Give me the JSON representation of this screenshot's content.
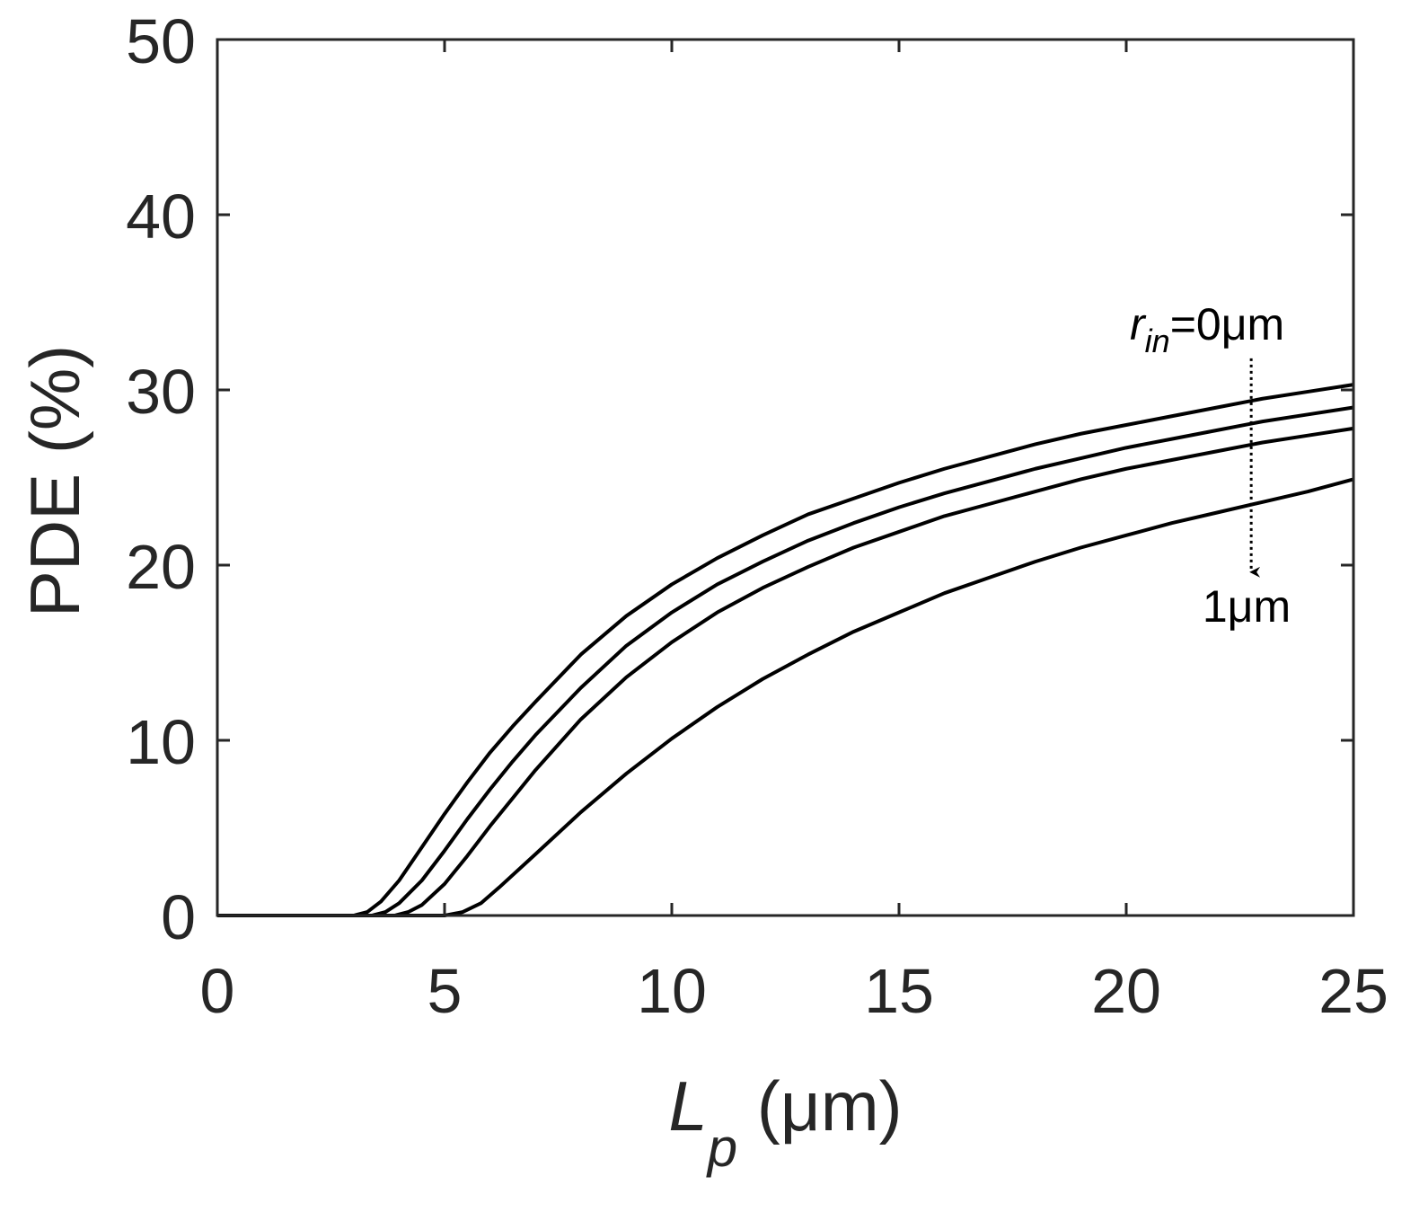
{
  "chart_data": {
    "type": "line",
    "xlabel": {
      "main": "L",
      "sub": "p",
      "unit": " (μm)"
    },
    "ylabel": "PDE (%)",
    "xlim": [
      0,
      25
    ],
    "ylim": [
      0,
      50
    ],
    "xticks": [
      0,
      5,
      10,
      15,
      20,
      25
    ],
    "yticks": [
      0,
      10,
      20,
      30,
      40,
      50
    ],
    "grid": false,
    "line_color": "#000000",
    "axis_color": "#262626",
    "series": [
      {
        "points": [
          [
            0,
            0
          ],
          [
            3.0,
            0
          ],
          [
            3.3,
            0.2
          ],
          [
            3.6,
            0.8
          ],
          [
            4.0,
            2.0
          ],
          [
            4.5,
            3.9
          ],
          [
            5.0,
            5.8
          ],
          [
            5.5,
            7.6
          ],
          [
            6.0,
            9.3
          ],
          [
            6.5,
            10.8
          ],
          [
            7.0,
            12.2
          ],
          [
            8.0,
            14.9
          ],
          [
            9.0,
            17.1
          ],
          [
            10.0,
            18.9
          ],
          [
            11.0,
            20.4
          ],
          [
            12.0,
            21.7
          ],
          [
            13.0,
            22.9
          ],
          [
            14.0,
            23.8
          ],
          [
            15.0,
            24.7
          ],
          [
            16.0,
            25.5
          ],
          [
            17.0,
            26.2
          ],
          [
            18.0,
            26.9
          ],
          [
            19.0,
            27.5
          ],
          [
            20.0,
            28.0
          ],
          [
            21.0,
            28.5
          ],
          [
            22.0,
            29.0
          ],
          [
            23.0,
            29.5
          ],
          [
            24.0,
            29.9
          ],
          [
            25.0,
            30.3
          ]
        ]
      },
      {
        "points": [
          [
            0,
            0
          ],
          [
            3.4,
            0
          ],
          [
            3.7,
            0.2
          ],
          [
            4.0,
            0.7
          ],
          [
            4.5,
            2.0
          ],
          [
            5.0,
            3.7
          ],
          [
            5.5,
            5.5
          ],
          [
            6.0,
            7.2
          ],
          [
            6.5,
            8.8
          ],
          [
            7.0,
            10.3
          ],
          [
            8.0,
            13.0
          ],
          [
            9.0,
            15.4
          ],
          [
            10.0,
            17.3
          ],
          [
            11.0,
            18.9
          ],
          [
            12.0,
            20.2
          ],
          [
            13.0,
            21.4
          ],
          [
            14.0,
            22.4
          ],
          [
            15.0,
            23.3
          ],
          [
            16.0,
            24.1
          ],
          [
            17.0,
            24.8
          ],
          [
            18.0,
            25.5
          ],
          [
            19.0,
            26.1
          ],
          [
            20.0,
            26.7
          ],
          [
            21.0,
            27.2
          ],
          [
            22.0,
            27.7
          ],
          [
            23.0,
            28.2
          ],
          [
            24.0,
            28.6
          ],
          [
            25.0,
            29.0
          ]
        ]
      },
      {
        "points": [
          [
            0,
            0
          ],
          [
            3.9,
            0
          ],
          [
            4.2,
            0.2
          ],
          [
            4.5,
            0.6
          ],
          [
            5.0,
            1.8
          ],
          [
            5.5,
            3.4
          ],
          [
            6.0,
            5.1
          ],
          [
            6.5,
            6.7
          ],
          [
            7.0,
            8.3
          ],
          [
            8.0,
            11.2
          ],
          [
            9.0,
            13.6
          ],
          [
            10.0,
            15.6
          ],
          [
            11.0,
            17.3
          ],
          [
            12.0,
            18.7
          ],
          [
            13.0,
            19.9
          ],
          [
            14.0,
            21.0
          ],
          [
            15.0,
            21.9
          ],
          [
            16.0,
            22.8
          ],
          [
            17.0,
            23.5
          ],
          [
            18.0,
            24.2
          ],
          [
            19.0,
            24.9
          ],
          [
            20.0,
            25.5
          ],
          [
            21.0,
            26.0
          ],
          [
            22.0,
            26.5
          ],
          [
            23.0,
            27.0
          ],
          [
            24.0,
            27.4
          ],
          [
            25.0,
            27.8
          ]
        ]
      },
      {
        "points": [
          [
            0,
            0
          ],
          [
            5.0,
            0
          ],
          [
            5.4,
            0.2
          ],
          [
            5.8,
            0.7
          ],
          [
            6.2,
            1.6
          ],
          [
            7.0,
            3.5
          ],
          [
            8.0,
            5.9
          ],
          [
            9.0,
            8.1
          ],
          [
            10.0,
            10.1
          ],
          [
            11.0,
            11.9
          ],
          [
            12.0,
            13.5
          ],
          [
            13.0,
            14.9
          ],
          [
            14.0,
            16.2
          ],
          [
            15.0,
            17.3
          ],
          [
            16.0,
            18.4
          ],
          [
            17.0,
            19.3
          ],
          [
            18.0,
            20.2
          ],
          [
            19.0,
            21.0
          ],
          [
            20.0,
            21.7
          ],
          [
            21.0,
            22.4
          ],
          [
            22.0,
            23.0
          ],
          [
            23.0,
            23.6
          ],
          [
            24.0,
            24.2
          ],
          [
            25.0,
            24.9
          ]
        ]
      }
    ],
    "annotations": {
      "top_label": {
        "r": "r",
        "sub": "in",
        "rest": "=0μm"
      },
      "bottom_label": "1μm",
      "arrow": {
        "x": 22.75,
        "y_from": 31.8,
        "y_to": 19.6,
        "style": "dotted"
      }
    }
  }
}
